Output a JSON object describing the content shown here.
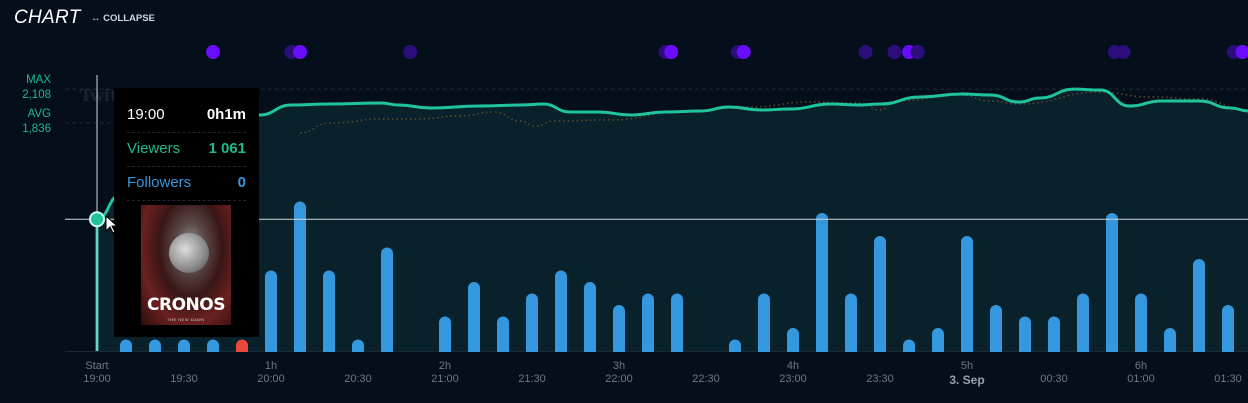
{
  "header": {
    "title": "CHART",
    "collapse_label": "COLLAPSE",
    "collapse_icon": "horizontal-arrows-icon"
  },
  "watermark": "TwitchTracker.com",
  "stats": {
    "max_label": "MAX",
    "max_value": "2,108",
    "avg_label": "AVG",
    "avg_value": "1,836"
  },
  "colors": {
    "background": "#050f1c",
    "viewers": "#1fc49c",
    "followers": "#3597dd",
    "highlight_bar": "#e8493c",
    "event_bright": "#6a0dfc",
    "event_dim": "#2c0d7a"
  },
  "tooltip": {
    "time": "19:00",
    "duration": "0h1m",
    "viewers_label": "Viewers",
    "viewers_value": "1 061",
    "followers_label": "Followers",
    "followers_value": "0",
    "game_title": "CRONOS",
    "game_subtitle": "THE NEW DAWN"
  },
  "chart_data": {
    "type": "line+bar",
    "x_axis": {
      "hour_labels": [
        {
          "t": "19:00",
          "label": "Start"
        },
        {
          "t": "20:00",
          "label": "1h"
        },
        {
          "t": "21:00",
          "label": "2h"
        },
        {
          "t": "22:00",
          "label": "3h"
        },
        {
          "t": "23:00",
          "label": "4h"
        },
        {
          "t": "00:00",
          "label": "5h"
        },
        {
          "t": "01:00",
          "label": "6h"
        }
      ],
      "time_labels": [
        {
          "t": "19:00",
          "label": "19:00"
        },
        {
          "t": "19:30",
          "label": "19:30"
        },
        {
          "t": "20:00",
          "label": "20:00"
        },
        {
          "t": "20:30",
          "label": "20:30"
        },
        {
          "t": "21:00",
          "label": "21:00"
        },
        {
          "t": "21:30",
          "label": "21:30"
        },
        {
          "t": "22:00",
          "label": "22:00"
        },
        {
          "t": "22:30",
          "label": "22:30"
        },
        {
          "t": "23:00",
          "label": "23:00"
        },
        {
          "t": "23:30",
          "label": "23:30"
        },
        {
          "t": "00:00",
          "label": "3. Sep",
          "bold": true
        },
        {
          "t": "00:30",
          "label": "00:30"
        },
        {
          "t": "01:00",
          "label": "01:00"
        },
        {
          "t": "01:30",
          "label": "01:30"
        }
      ]
    },
    "reference_lines": [
      {
        "label": "MAX",
        "value": 2108
      },
      {
        "label": "AVG",
        "value": 1836
      }
    ],
    "viewers": [
      [
        "19:00",
        1061
      ],
      [
        "19:08",
        1256
      ],
      [
        "19:56",
        1900
      ],
      [
        "20:07",
        1980
      ],
      [
        "20:20",
        1988
      ],
      [
        "20:38",
        1996
      ],
      [
        "20:44",
        1980
      ],
      [
        "20:55",
        1956
      ],
      [
        "21:12",
        1972
      ],
      [
        "21:26",
        1980
      ],
      [
        "21:34",
        1988
      ],
      [
        "21:43",
        1924
      ],
      [
        "21:53",
        1924
      ],
      [
        "22:04",
        1900
      ],
      [
        "22:16",
        1924
      ],
      [
        "22:28",
        1932
      ],
      [
        "22:38",
        1964
      ],
      [
        "22:49",
        1940
      ],
      [
        "22:59",
        1948
      ],
      [
        "23:13",
        1988
      ],
      [
        "23:23",
        1980
      ],
      [
        "23:30",
        1988
      ],
      [
        "23:44",
        2045
      ],
      [
        "23:58",
        2069
      ],
      [
        "00:08",
        2061
      ],
      [
        "00:18",
        2004
      ],
      [
        "00:25",
        2037
      ],
      [
        "00:37",
        2108
      ],
      [
        "00:46",
        2101
      ],
      [
        "00:56",
        1972
      ],
      [
        "01:07",
        2013
      ],
      [
        "01:20",
        2013
      ],
      [
        "01:31",
        1956
      ],
      [
        "01:37",
        1932
      ]
    ],
    "comparison_dotted": [
      [
        "20:10",
        1755
      ],
      [
        "20:20",
        1835
      ],
      [
        "20:39",
        1868
      ],
      [
        "20:51",
        1868
      ],
      [
        "21:05",
        1892
      ],
      [
        "21:17",
        1924
      ],
      [
        "21:26",
        1852
      ],
      [
        "21:31",
        1811
      ],
      [
        "21:38",
        1852
      ],
      [
        "21:57",
        1860
      ],
      [
        "22:21",
        1924
      ],
      [
        "22:45",
        1964
      ],
      [
        "23:06",
        2004
      ],
      [
        "23:23",
        1996
      ],
      [
        "23:30",
        1940
      ],
      [
        "23:35",
        2013
      ],
      [
        "23:58",
        2061
      ],
      [
        "00:08",
        2013
      ],
      [
        "00:18",
        1988
      ],
      [
        "00:46",
        2085
      ],
      [
        "01:03",
        2045
      ],
      [
        "01:20",
        2029
      ],
      [
        "01:37",
        1940
      ]
    ],
    "followers_bars": [
      [
        "19:10",
        1
      ],
      [
        "19:20",
        1
      ],
      [
        "19:30",
        1
      ],
      [
        "19:40",
        1
      ],
      [
        "19:50",
        1,
        "highlight"
      ],
      [
        "20:00",
        7
      ],
      [
        "20:10",
        13
      ],
      [
        "20:20",
        7
      ],
      [
        "20:30",
        1
      ],
      [
        "20:40",
        9
      ],
      [
        "20:50",
        0
      ],
      [
        "21:00",
        3
      ],
      [
        "21:10",
        6
      ],
      [
        "21:20",
        3
      ],
      [
        "21:30",
        5
      ],
      [
        "21:40",
        7
      ],
      [
        "21:50",
        6
      ],
      [
        "22:00",
        4
      ],
      [
        "22:10",
        5
      ],
      [
        "22:20",
        5
      ],
      [
        "22:30",
        0
      ],
      [
        "22:40",
        1
      ],
      [
        "22:50",
        5
      ],
      [
        "23:00",
        2
      ],
      [
        "23:10",
        12
      ],
      [
        "23:20",
        5
      ],
      [
        "23:30",
        10
      ],
      [
        "23:40",
        1
      ],
      [
        "23:50",
        2
      ],
      [
        "00:00",
        10
      ],
      [
        "00:10",
        4
      ],
      [
        "00:20",
        3
      ],
      [
        "00:30",
        3
      ],
      [
        "00:40",
        5
      ],
      [
        "00:50",
        12
      ],
      [
        "01:00",
        5
      ],
      [
        "01:10",
        2
      ],
      [
        "01:20",
        8
      ],
      [
        "01:30",
        4
      ],
      [
        "01:40",
        6
      ]
    ],
    "events": [
      [
        "19:40",
        "bright"
      ],
      [
        "20:07",
        "dim"
      ],
      [
        "20:10",
        "bright"
      ],
      [
        "20:48",
        "dim"
      ],
      [
        "22:16",
        "dim"
      ],
      [
        "22:18",
        "bright"
      ],
      [
        "22:41",
        "dim"
      ],
      [
        "22:43",
        "bright"
      ],
      [
        "23:25",
        "dim"
      ],
      [
        "23:35",
        "dim"
      ],
      [
        "23:40",
        "bright"
      ],
      [
        "23:43",
        "dim"
      ],
      [
        "00:51",
        "dim"
      ],
      [
        "00:54",
        "dim"
      ],
      [
        "01:32",
        "dim"
      ],
      [
        "01:35",
        "bright"
      ]
    ],
    "hover": {
      "t": "19:00",
      "value": 1061
    }
  }
}
